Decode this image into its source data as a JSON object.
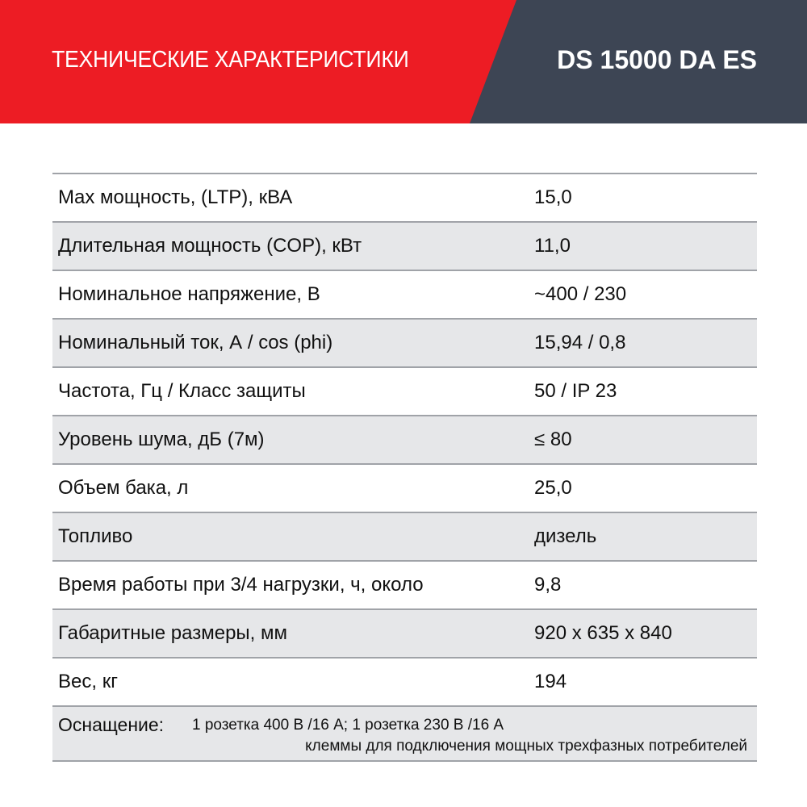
{
  "header": {
    "title": "ТЕХНИЧЕСКИЕ ХАРАКТЕРИСТИКИ",
    "model": "DS 15000 DA ES",
    "colors": {
      "red": "#ed1c24",
      "dark": "#3d4554"
    }
  },
  "specs": [
    {
      "label": "Max мощность, (LTP), кВА",
      "value": "15,0"
    },
    {
      "label": "Длительная мощность (COP), кВт",
      "value": "11,0"
    },
    {
      "label": "Номинальное напряжение, В",
      "value": "~400 / 230"
    },
    {
      "label": "Номинальный ток, А / cos (phi)",
      "value": "15,94 / 0,8"
    },
    {
      "label": "Частота, Гц / Класс защиты",
      "value": "50 / IP 23"
    },
    {
      "label": "Уровень шума, дБ (7м)",
      "value": "≤ 80"
    },
    {
      "label": "Объем бака, л",
      "value": "25,0"
    },
    {
      "label": "Топливо",
      "value": "дизель"
    },
    {
      "label": "Время работы при 3/4 нагрузки, ч, около",
      "value": "9,8"
    },
    {
      "label": "Габаритные размеры, мм",
      "value": "920 x 635 x 840"
    },
    {
      "label": "Вес, кг",
      "value": "194"
    }
  ],
  "equipment": {
    "label": "Оснащение:",
    "line1": "1 розетка 400 В /16 А; 1 розетка 230 В /16 А",
    "line2": "клеммы для подключения мощных трехфазных потребителей"
  }
}
